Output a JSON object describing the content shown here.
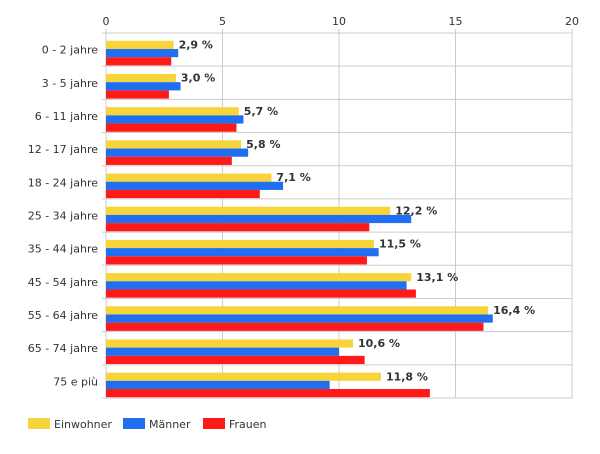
{
  "chart_data": {
    "type": "bar",
    "orientation": "horizontal",
    "categories": [
      "0 - 2 jahre",
      "3 - 5 jahre",
      "6 - 11 jahre",
      "12 - 17 jahre",
      "18 - 24 jahre",
      "25 - 34 jahre",
      "35 - 44 jahre",
      "45 - 54 jahre",
      "55 - 64 jahre",
      "65 - 74 jahre",
      "75 e più"
    ],
    "series": [
      {
        "name": "Einwohner",
        "color": "#f7d43a",
        "values": [
          2.9,
          3.0,
          5.7,
          5.8,
          7.1,
          12.2,
          11.5,
          13.1,
          16.4,
          10.6,
          11.8
        ],
        "labels": [
          "2,9 %",
          "3,0 %",
          "5,7 %",
          "5,8 %",
          "7,1 %",
          "12,2 %",
          "11,5 %",
          "13,1 %",
          "16,4 %",
          "10,6 %",
          "11,8 %"
        ]
      },
      {
        "name": "Männer",
        "color": "#1f6ff0",
        "values": [
          3.1,
          3.2,
          5.9,
          6.1,
          7.6,
          13.1,
          11.7,
          12.9,
          16.6,
          10.0,
          9.6
        ]
      },
      {
        "name": "Frauen",
        "color": "#ff1a1a",
        "values": [
          2.8,
          2.7,
          5.6,
          5.4,
          6.6,
          11.3,
          11.2,
          13.3,
          16.2,
          11.1,
          13.9
        ]
      }
    ],
    "xlim": [
      0,
      20
    ],
    "xticks": [
      0,
      5,
      10,
      15,
      20
    ],
    "tick_labels": [
      "0",
      "5",
      "10",
      "15",
      "20"
    ],
    "grid": true,
    "legend": "bottom-left",
    "title": "",
    "xlabel": "",
    "ylabel": ""
  }
}
